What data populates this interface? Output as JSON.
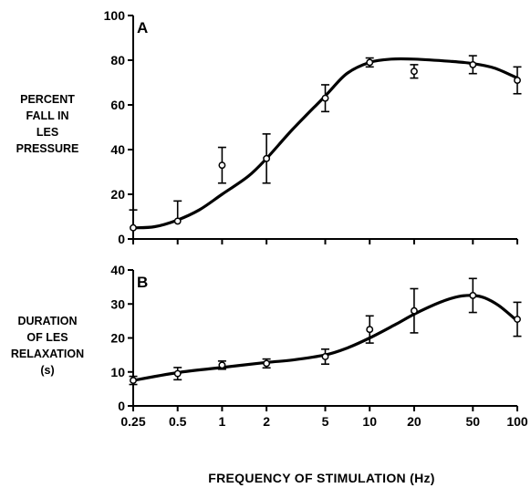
{
  "chart_data": [
    {
      "type": "line",
      "panel_label": "A",
      "ylabel_lines": [
        "PERCENT",
        "FALL IN",
        "LES",
        "PRESSURE"
      ],
      "xlabel": "",
      "x_scale": "log",
      "x": [
        0.25,
        0.5,
        1,
        2,
        5,
        10,
        20,
        50,
        100
      ],
      "x_tick_labels": [],
      "ylim": [
        0,
        100
      ],
      "y_ticks": [
        0,
        20,
        40,
        60,
        80,
        100
      ],
      "series": [
        {
          "values": [
            5,
            8,
            33,
            36,
            63,
            79,
            75,
            78,
            71
          ],
          "err_upper": [
            8,
            9,
            8,
            11,
            6,
            2,
            3,
            4,
            6
          ],
          "err_lower": [
            0,
            0,
            8,
            11,
            6,
            2,
            3,
            4,
            6
          ],
          "fit_curve": [
            [
              0.25,
              5
            ],
            [
              0.35,
              5.5
            ],
            [
              0.5,
              8.5
            ],
            [
              0.7,
              13
            ],
            [
              1,
              20
            ],
            [
              1.5,
              28
            ],
            [
              2,
              36
            ],
            [
              3,
              49
            ],
            [
              5,
              64
            ],
            [
              7,
              74
            ],
            [
              10,
              79
            ],
            [
              14,
              80.5
            ],
            [
              20,
              80.5
            ],
            [
              35,
              79.5
            ],
            [
              50,
              78.5
            ],
            [
              70,
              76.5
            ],
            [
              100,
              72
            ]
          ]
        }
      ],
      "grid": false
    },
    {
      "type": "line",
      "panel_label": "B",
      "ylabel_lines": [
        "DURATION",
        "OF LES",
        "RELAXATION",
        "(s)"
      ],
      "xlabel": "FREQUENCY OF STIMULATION (Hz)",
      "x_scale": "log",
      "x": [
        0.25,
        0.5,
        1,
        2,
        5,
        10,
        20,
        50,
        100
      ],
      "x_tick_labels": [
        "0.25",
        "0.5",
        "1",
        "2",
        "5",
        "10",
        "20",
        "50",
        "100"
      ],
      "ylim": [
        0,
        40
      ],
      "y_ticks": [
        0,
        10,
        20,
        30,
        40
      ],
      "series": [
        {
          "values": [
            7.5,
            9.5,
            12,
            12.5,
            14.5,
            22.5,
            28,
            32.5,
            25.5
          ],
          "err_upper": [
            1.2,
            1.8,
            1.2,
            1.3,
            2.2,
            4,
            6.5,
            5,
            5
          ],
          "err_lower": [
            1.2,
            1.8,
            1.2,
            1.3,
            2.2,
            4,
            6.5,
            5,
            5
          ],
          "fit_curve": [
            [
              0.25,
              7.5
            ],
            [
              0.5,
              9.8
            ],
            [
              1,
              11.3
            ],
            [
              2,
              12.8
            ],
            [
              3,
              13.5
            ],
            [
              5,
              15
            ],
            [
              7,
              17
            ],
            [
              10,
              20
            ],
            [
              15,
              24
            ],
            [
              20,
              27
            ],
            [
              30,
              30.5
            ],
            [
              40,
              32.2
            ],
            [
              50,
              32.5
            ],
            [
              60,
              31.8
            ],
            [
              75,
              29.5
            ],
            [
              100,
              25
            ]
          ]
        }
      ],
      "grid": false
    }
  ]
}
